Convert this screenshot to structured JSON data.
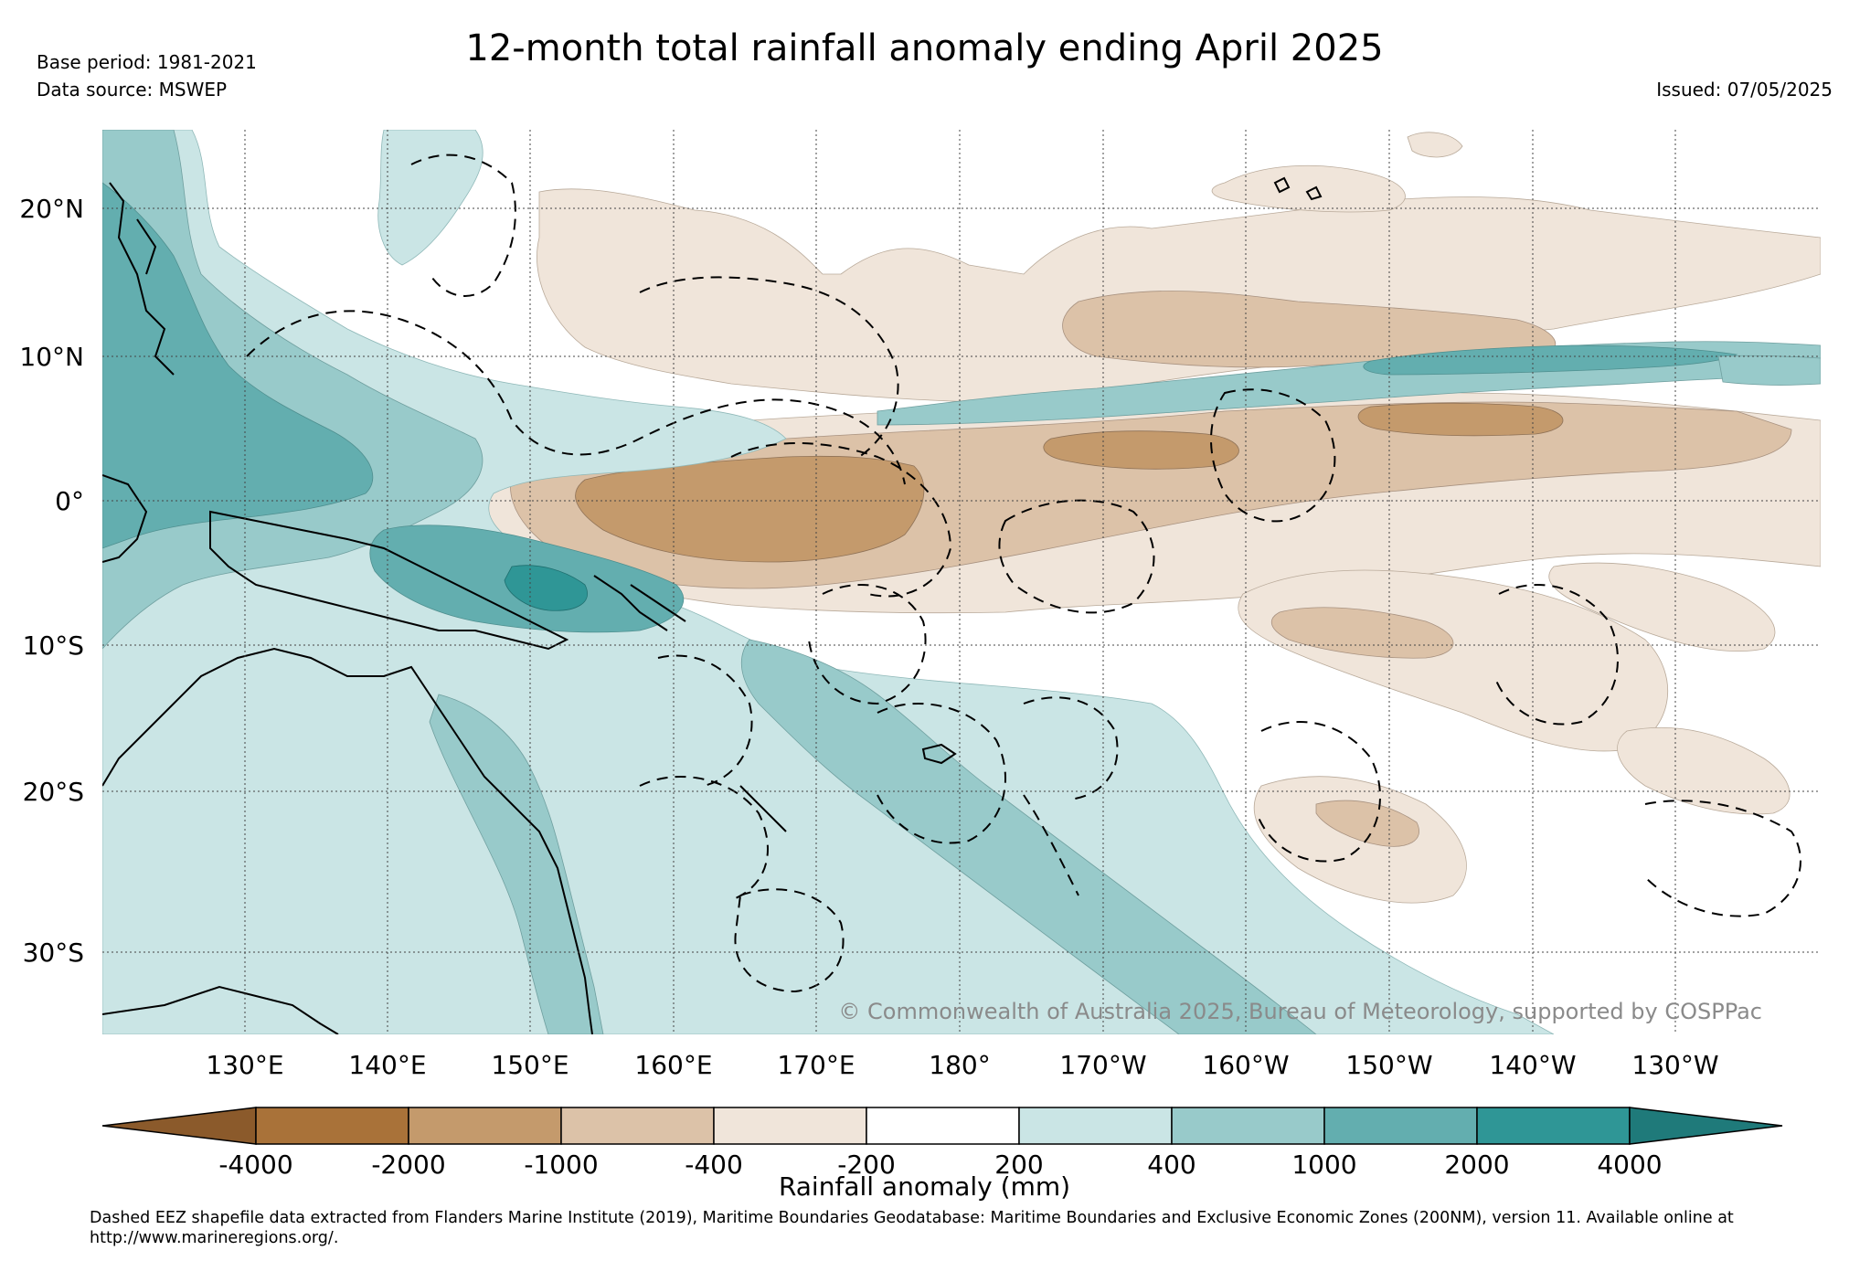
{
  "header": {
    "title": "12-month total rainfall anomaly ending April 2025",
    "base_period": "Base period: 1981-2021",
    "data_source": "Data source: MSWEP",
    "issued": "Issued: 07/05/2025"
  },
  "map": {
    "copyright": "© Commonwealth of Australia 2025, Bureau of Meteorology, supported by COSPPac",
    "lat_labels": [
      "20°N",
      "10°N",
      "0°",
      "10°S",
      "20°S",
      "30°S"
    ],
    "lon_labels": [
      "130°E",
      "140°E",
      "150°E",
      "160°E",
      "170°E",
      "180°",
      "170°W",
      "160°W",
      "150°W",
      "140°W",
      "130°W"
    ],
    "colors": {
      "dry_extreme": "#8B5A2B",
      "dry_4000": "#A97239",
      "dry_2000": "#C49A6C",
      "dry_1000": "#DCC2A8",
      "dry_400": "#F0E5DA",
      "neutral": "#FFFFFF",
      "wet_200": "#CAE5E5",
      "wet_400": "#98CACA",
      "wet_1000": "#63AEAF",
      "wet_2000": "#2F9696",
      "wet_extreme": "#1F7A7A"
    }
  },
  "colorbar": {
    "label": "Rainfall anomaly (mm)",
    "ticks": [
      "-4000",
      "-2000",
      "-1000",
      "-400",
      "-200",
      "200",
      "400",
      "1000",
      "2000",
      "4000"
    ]
  },
  "footer": {
    "text": "Dashed EEZ shapefile data extracted from Flanders Marine Institute (2019), Maritime Boundaries Geodatabase: Maritime Boundaries and Exclusive Economic Zones (200NM), version 11. Available online at http://www.marineregions.org/."
  }
}
